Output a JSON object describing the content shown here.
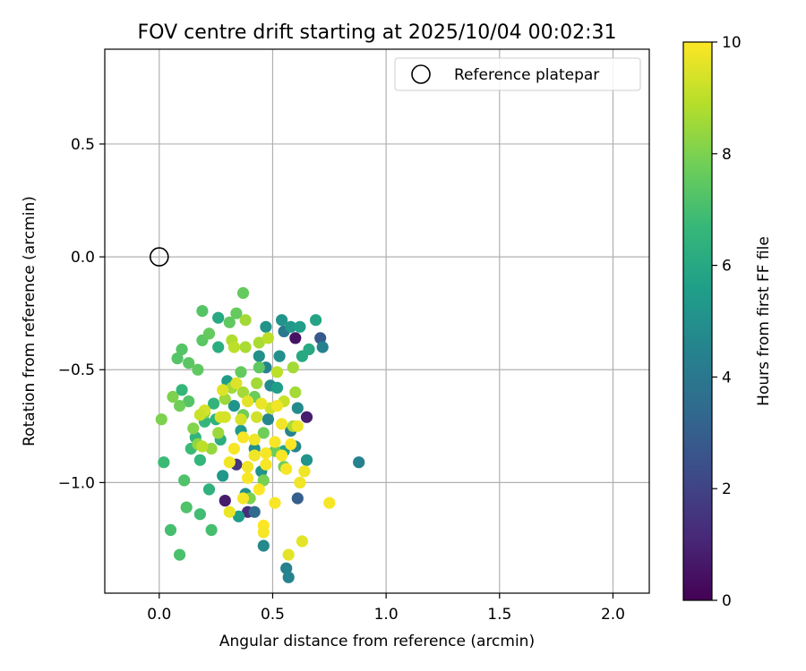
{
  "chart_data": {
    "type": "scatter",
    "title": "FOV centre drift starting at 2025/10/04 00:02:31",
    "xlabel": "Angular distance from reference (arcmin)",
    "ylabel": "Rotation from reference (arcmin)",
    "xlim": [
      -0.24,
      2.16
    ],
    "ylim": [
      -1.49,
      0.92
    ],
    "xticks": [
      0.0,
      0.5,
      1.0,
      1.5,
      2.0
    ],
    "xtick_labels": [
      "0.0",
      "0.5",
      "1.0",
      "1.5",
      "2.0"
    ],
    "yticks": [
      -1.0,
      -0.5,
      0.0,
      0.5
    ],
    "ytick_labels": [
      "−1.0",
      "−0.5",
      "0.0",
      "0.5"
    ],
    "grid": true,
    "legend": {
      "position": "top-right",
      "entries": [
        {
          "label": "Reference platepar",
          "marker": "open-circle"
        }
      ]
    },
    "reference_point": {
      "x": 0.0,
      "y": 0.0
    },
    "colorbar": {
      "label": "Hours from first FF file",
      "range": [
        0,
        10
      ],
      "ticks": [
        0,
        2,
        4,
        6,
        8,
        10
      ],
      "tick_labels": [
        "0",
        "2",
        "4",
        "6",
        "8",
        "10"
      ],
      "colormap": [
        "#440154",
        "#482878",
        "#3e4a89",
        "#31688e",
        "#26828e",
        "#1f9e89",
        "#35b779",
        "#6ece58",
        "#b5de2b",
        "#fde725"
      ]
    },
    "series": [
      {
        "name": "FOV centre",
        "points": [
          [
            0.6,
            -0.36,
            0.5
          ],
          [
            0.65,
            -0.71,
            0.8
          ],
          [
            0.29,
            -1.08,
            0.8
          ],
          [
            0.39,
            -1.13,
            1.3
          ],
          [
            0.34,
            -0.92,
            1.5
          ],
          [
            0.71,
            -0.36,
            2.8
          ],
          [
            0.61,
            -1.07,
            3.0
          ],
          [
            0.55,
            -0.33,
            4.0
          ],
          [
            0.42,
            -1.13,
            3.5
          ],
          [
            0.88,
            -0.91,
            4.4
          ],
          [
            0.72,
            -0.4,
            4.4
          ],
          [
            0.56,
            -1.38,
            4.4
          ],
          [
            0.57,
            -1.42,
            4.5
          ],
          [
            0.46,
            -1.28,
            4.7
          ],
          [
            0.6,
            -0.84,
            4.6
          ],
          [
            0.61,
            -0.67,
            4.8
          ],
          [
            0.49,
            -0.57,
            4.8
          ],
          [
            0.47,
            -0.49,
            4.5
          ],
          [
            0.48,
            -0.72,
            4.6
          ],
          [
            0.58,
            -0.77,
            4.5
          ],
          [
            0.53,
            -0.44,
            5.0
          ],
          [
            0.44,
            -0.44,
            5.0
          ],
          [
            0.47,
            -0.31,
            5.1
          ],
          [
            0.54,
            -0.28,
            5.2
          ],
          [
            0.58,
            -0.31,
            5.3
          ],
          [
            0.42,
            -0.85,
            5.0
          ],
          [
            0.45,
            -0.95,
            5.1
          ],
          [
            0.38,
            -1.05,
            5.0
          ],
          [
            0.35,
            -1.15,
            5.5
          ],
          [
            0.28,
            -0.97,
            5.3
          ],
          [
            0.3,
            -0.55,
            5.5
          ],
          [
            0.33,
            -0.66,
            5.2
          ],
          [
            0.36,
            -0.77,
            5.4
          ],
          [
            0.52,
            -0.58,
            5.6
          ],
          [
            0.55,
            -0.86,
            5.8
          ],
          [
            0.65,
            -0.9,
            5.2
          ],
          [
            0.62,
            -0.31,
            5.6
          ],
          [
            0.69,
            -0.28,
            5.8
          ],
          [
            0.66,
            -0.41,
            6.0
          ],
          [
            0.63,
            -0.44,
            6.0
          ],
          [
            0.26,
            -0.27,
            6.0
          ],
          [
            0.26,
            -0.4,
            6.2
          ],
          [
            0.27,
            -0.81,
            6.2
          ],
          [
            0.22,
            -1.03,
            6.4
          ],
          [
            0.25,
            -0.72,
            6.4
          ],
          [
            0.24,
            -0.65,
            6.5
          ],
          [
            0.18,
            -0.9,
            6.6
          ],
          [
            0.16,
            -0.8,
            6.5
          ],
          [
            0.2,
            -0.73,
            6.6
          ],
          [
            0.1,
            -0.59,
            6.6
          ],
          [
            0.02,
            -0.91,
            6.8
          ],
          [
            0.14,
            -0.85,
            6.8
          ],
          [
            0.18,
            -1.14,
            6.9
          ],
          [
            0.23,
            -1.21,
            7.0
          ],
          [
            0.05,
            -1.21,
            7.0
          ],
          [
            0.09,
            -1.32,
            7.1
          ],
          [
            0.12,
            -1.11,
            7.2
          ],
          [
            0.11,
            -0.99,
            7.2
          ],
          [
            0.13,
            -0.64,
            7.3
          ],
          [
            0.08,
            -0.45,
            7.3
          ],
          [
            0.1,
            -0.41,
            7.3
          ],
          [
            0.13,
            -0.47,
            7.4
          ],
          [
            0.17,
            -0.5,
            7.5
          ],
          [
            0.19,
            -0.37,
            7.4
          ],
          [
            0.22,
            -0.34,
            7.6
          ],
          [
            0.19,
            -0.24,
            7.3
          ],
          [
            0.31,
            -0.29,
            7.5
          ],
          [
            0.34,
            -0.25,
            7.6
          ],
          [
            0.37,
            -0.16,
            7.6
          ],
          [
            0.44,
            -0.49,
            7.5
          ],
          [
            0.36,
            -0.51,
            7.6
          ],
          [
            0.42,
            -0.62,
            7.7
          ],
          [
            0.37,
            -0.7,
            7.8
          ],
          [
            0.46,
            -0.78,
            7.8
          ],
          [
            0.51,
            -0.86,
            7.7
          ],
          [
            0.55,
            -0.93,
            7.8
          ],
          [
            0.46,
            -0.99,
            7.9
          ],
          [
            0.4,
            -1.07,
            8.0
          ],
          [
            0.06,
            -0.62,
            8.0
          ],
          [
            0.09,
            -0.66,
            7.8
          ],
          [
            0.01,
            -0.72,
            8.0
          ],
          [
            0.15,
            -0.76,
            8.1
          ],
          [
            0.2,
            -0.69,
            8.2
          ],
          [
            0.17,
            -0.83,
            8.3
          ],
          [
            0.23,
            -0.85,
            8.4
          ],
          [
            0.26,
            -0.78,
            8.5
          ],
          [
            0.29,
            -0.63,
            8.5
          ],
          [
            0.32,
            -0.58,
            8.6
          ],
          [
            0.37,
            -0.6,
            8.6
          ],
          [
            0.43,
            -0.56,
            8.6
          ],
          [
            0.59,
            -0.49,
            8.6
          ],
          [
            0.6,
            -0.6,
            8.6
          ],
          [
            0.59,
            -0.75,
            8.7
          ],
          [
            0.38,
            -0.28,
            8.6
          ],
          [
            0.38,
            -0.4,
            8.7
          ],
          [
            0.44,
            -0.38,
            8.7
          ],
          [
            0.32,
            -0.37,
            8.8
          ],
          [
            0.33,
            -0.4,
            9.0
          ],
          [
            0.48,
            -0.36,
            9.0
          ],
          [
            0.52,
            -0.51,
            9.0
          ],
          [
            0.55,
            -0.64,
            9.2
          ],
          [
            0.49,
            -0.67,
            9.3
          ],
          [
            0.43,
            -0.71,
            9.3
          ],
          [
            0.36,
            -0.72,
            9.4
          ],
          [
            0.29,
            -0.71,
            9.4
          ],
          [
            0.28,
            -0.59,
            9.5
          ],
          [
            0.34,
            -0.56,
            9.5
          ],
          [
            0.39,
            -0.64,
            9.6
          ],
          [
            0.45,
            -0.65,
            9.7
          ],
          [
            0.52,
            -0.66,
            9.8
          ],
          [
            0.54,
            -0.74,
            9.8
          ],
          [
            0.51,
            -0.82,
            9.9
          ],
          [
            0.47,
            -0.87,
            9.9
          ],
          [
            0.42,
            -0.88,
            9.8
          ],
          [
            0.37,
            -0.8,
            9.9
          ],
          [
            0.33,
            -0.85,
            9.9
          ],
          [
            0.31,
            -0.91,
            9.8
          ],
          [
            0.39,
            -0.98,
            9.9
          ],
          [
            0.44,
            -1.03,
            10.0
          ],
          [
            0.47,
            -0.92,
            9.9
          ],
          [
            0.58,
            -0.83,
            10.0
          ],
          [
            0.54,
            -0.88,
            9.9
          ],
          [
            0.56,
            -0.94,
            9.9
          ],
          [
            0.51,
            -1.09,
            9.9
          ],
          [
            0.42,
            -0.81,
            9.8
          ],
          [
            0.39,
            -0.93,
            9.8
          ],
          [
            0.46,
            -1.19,
            10.0
          ],
          [
            0.46,
            -1.22,
            9.9
          ],
          [
            0.37,
            -1.07,
            9.9
          ],
          [
            0.31,
            -1.13,
            9.7
          ],
          [
            0.61,
            -0.75,
            9.7
          ],
          [
            0.62,
            -1.0,
            9.8
          ],
          [
            0.64,
            -0.95,
            9.8
          ],
          [
            0.63,
            -1.26,
            9.6
          ],
          [
            0.57,
            -1.32,
            9.6
          ],
          [
            0.75,
            -1.09,
            9.9
          ],
          [
            0.2,
            -0.68,
            9.4
          ],
          [
            0.18,
            -0.7,
            9.2
          ],
          [
            0.27,
            -0.71,
            9.4
          ],
          [
            0.19,
            -0.84,
            9.0
          ]
        ]
      }
    ]
  }
}
